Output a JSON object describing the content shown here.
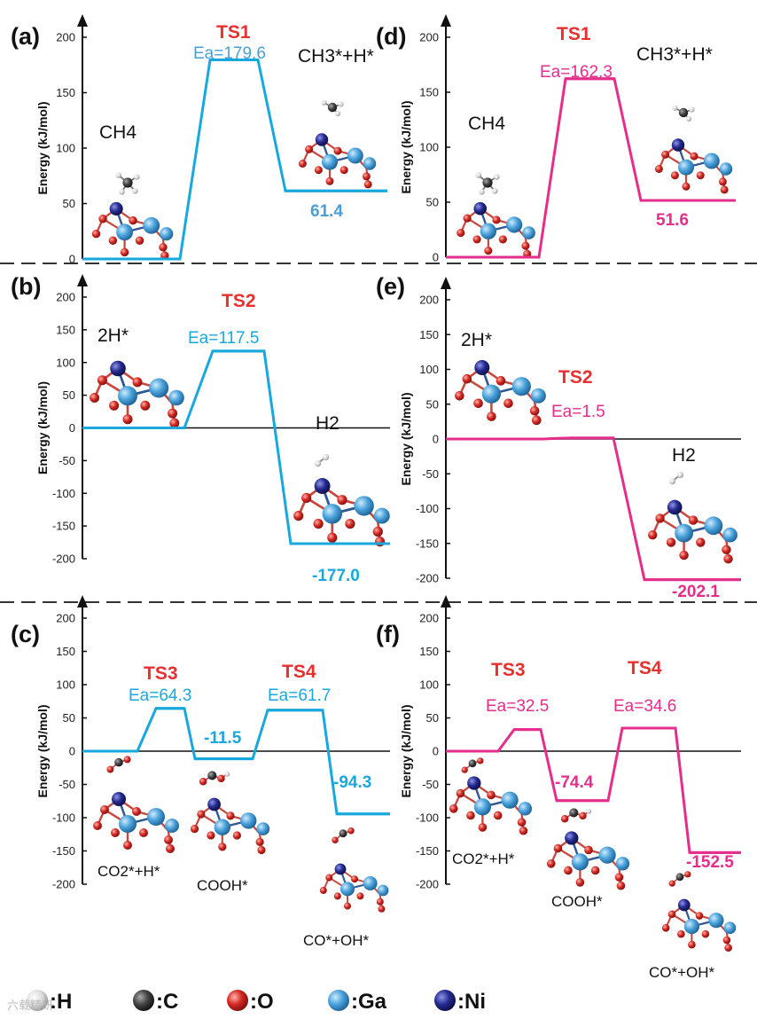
{
  "colors": {
    "left_series": "#19a8dd",
    "right_series": "#e52e8c",
    "ts_label": "#e8302f",
    "ea_left": "#4a9fd8",
    "ea_right": "#e52e8c"
  },
  "chart_data": [
    {
      "panel": "(a)",
      "type": "line",
      "ylabel": "Energy (kJ/mol)",
      "ylim": [
        0,
        200
      ],
      "yticks": [
        "0",
        "50",
        "100",
        "150",
        "200"
      ],
      "states": [
        {
          "label": "CH4",
          "energy": 0
        },
        {
          "label": "TS1",
          "energy": 179.6,
          "ts": true,
          "ea": "Ea=179.6"
        },
        {
          "label": "CH3*+H*",
          "energy": 61.4
        }
      ],
      "value_label": "61.4"
    },
    {
      "panel": "(b)",
      "type": "line",
      "ylabel": "Energy (kJ/mol)",
      "ylim": [
        -200,
        200
      ],
      "yticks": [
        "-200",
        "-150",
        "-100",
        "-50",
        "0",
        "50",
        "100",
        "150",
        "200"
      ],
      "states": [
        {
          "label": "2H*",
          "energy": 0
        },
        {
          "label": "TS2",
          "energy": 117.5,
          "ts": true,
          "ea": "Ea=117.5"
        },
        {
          "label": "H2",
          "energy": -177.0
        }
      ],
      "value_label": "-177.0"
    },
    {
      "panel": "(c)",
      "type": "line",
      "ylabel": "Energy (kJ/mol)",
      "ylim": [
        -200,
        200
      ],
      "yticks": [
        "-200",
        "-150",
        "-100",
        "-50",
        "0",
        "50",
        "100",
        "150",
        "200"
      ],
      "states": [
        {
          "label": "CO2*+H*",
          "energy": 0
        },
        {
          "label": "TS3",
          "energy": 64.3,
          "ts": true,
          "ea": "Ea=64.3"
        },
        {
          "label": "COOH*",
          "energy": -11.5
        },
        {
          "label": "TS4",
          "energy": 61.7,
          "ts": true,
          "ea": "Ea=61.7"
        },
        {
          "label": "CO*+OH*",
          "energy": -94.3
        }
      ],
      "value_labels": [
        "-11.5",
        "-94.3"
      ]
    },
    {
      "panel": "(d)",
      "type": "line",
      "ylabel": "Energy (kJ/mol)",
      "ylim": [
        0,
        200
      ],
      "yticks": [
        "0",
        "50",
        "100",
        "150",
        "200"
      ],
      "states": [
        {
          "label": "CH4",
          "energy": 0
        },
        {
          "label": "TS1",
          "energy": 162.3,
          "ts": true,
          "ea": "Ea=162.3"
        },
        {
          "label": "CH3*+H*",
          "energy": 51.6
        }
      ],
      "value_label": "51.6"
    },
    {
      "panel": "(e)",
      "type": "line",
      "ylabel": "Energy (kJ/mol)",
      "ylim": [
        -200,
        200
      ],
      "yticks": [
        "-200",
        "-150",
        "-100",
        "-50",
        "0",
        "50",
        "100",
        "150",
        "200"
      ],
      "states": [
        {
          "label": "2H*",
          "energy": 0
        },
        {
          "label": "TS2",
          "energy": 1.5,
          "ts": true,
          "ea": "Ea=1.5"
        },
        {
          "label": "H2",
          "energy": -202.1
        }
      ],
      "value_label": "-202.1"
    },
    {
      "panel": "(f)",
      "type": "line",
      "ylabel": "Energy (kJ/mol)",
      "ylim": [
        -200,
        200
      ],
      "yticks": [
        "-200",
        "-150",
        "-100",
        "-50",
        "0",
        "50",
        "100",
        "150",
        "200"
      ],
      "states": [
        {
          "label": "CO2*+H*",
          "energy": 0
        },
        {
          "label": "TS3",
          "energy": 32.5,
          "ts": true,
          "ea": "Ea=32.5"
        },
        {
          "label": "COOH*",
          "energy": -74.4
        },
        {
          "label": "TS4",
          "energy": 34.6,
          "ts": true,
          "ea": "Ea=34.6"
        },
        {
          "label": "CO*+OH*",
          "energy": -152.5
        }
      ],
      "value_labels": [
        "-74.4",
        "-152.5"
      ]
    }
  ],
  "legend": [
    {
      "symbol": "white-sphere",
      "label": ":H",
      "color": "#d8d8d8"
    },
    {
      "symbol": "black-sphere",
      "label": ":C",
      "color": "#333333"
    },
    {
      "symbol": "red-sphere",
      "label": ":O",
      "color": "#d42a25"
    },
    {
      "symbol": "blue-sphere",
      "label": ":Ga",
      "color": "#4aa3dc"
    },
    {
      "symbol": "navy-sphere",
      "label": ":Ni",
      "color": "#252a90"
    }
  ],
  "watermark": "六载精研"
}
